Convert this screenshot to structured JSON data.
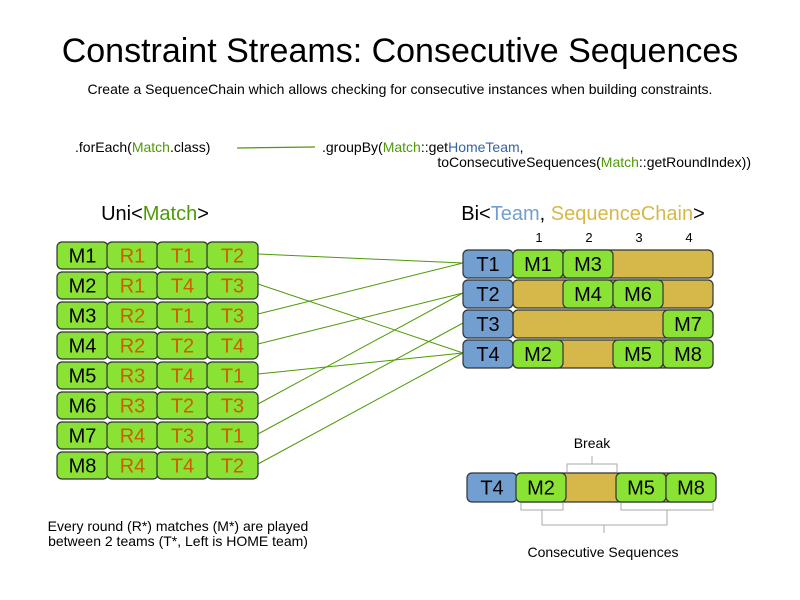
{
  "title": "Constraint Streams: Consecutive Sequences",
  "subtitle": "Create a SequenceChain which allows checking for consecutive instances when building constraints.",
  "code": {
    "forEach": [
      ".forEach(",
      "Match",
      ".class)"
    ],
    "groupBy_line1": [
      ".groupBy(",
      "Match",
      "::get",
      "HomeTeam",
      ","
    ],
    "groupBy_line2": [
      "toConsecutiveSequences(",
      "Match",
      "::getRoundIndex))"
    ]
  },
  "uni_label": [
    "Uni<",
    "Match",
    ">"
  ],
  "bi_label": [
    "Bi<",
    "Team",
    ", ",
    "SequenceChain",
    ">"
  ],
  "matches": [
    {
      "id": "M1",
      "round": "R1",
      "home": "T1",
      "away": "T2"
    },
    {
      "id": "M2",
      "round": "R1",
      "home": "T4",
      "away": "T3"
    },
    {
      "id": "M3",
      "round": "R2",
      "home": "T1",
      "away": "T3"
    },
    {
      "id": "M4",
      "round": "R2",
      "home": "T2",
      "away": "T4"
    },
    {
      "id": "M5",
      "round": "R3",
      "home": "T4",
      "away": "T1"
    },
    {
      "id": "M6",
      "round": "R3",
      "home": "T2",
      "away": "T3"
    },
    {
      "id": "M7",
      "round": "R4",
      "home": "T3",
      "away": "T1"
    },
    {
      "id": "M8",
      "round": "R4",
      "home": "T4",
      "away": "T2"
    }
  ],
  "round_headers": [
    "1",
    "2",
    "3",
    "4"
  ],
  "teams": [
    {
      "id": "T1",
      "rounds": [
        "M1",
        "M3",
        "",
        ""
      ]
    },
    {
      "id": "T2",
      "rounds": [
        "",
        "M4",
        "M6",
        ""
      ]
    },
    {
      "id": "T3",
      "rounds": [
        "",
        "",
        "",
        "M7"
      ]
    },
    {
      "id": "T4",
      "rounds": [
        "M2",
        "",
        "M5",
        "M8"
      ]
    }
  ],
  "example": {
    "team": "T4",
    "cells": [
      "M2",
      "",
      "M5",
      "M8"
    ],
    "break_label": "Break",
    "sequences_label": "Consecutive Sequences"
  },
  "footnote": [
    "Every round (R*) matches (M*) are played",
    "between 2 teams (T*, Left is HOME team)"
  ],
  "colors": {
    "green": "#8ae234",
    "green_text": "#4e9a06",
    "orange_text": "#ce5c00",
    "blue": "#729fcf",
    "blue_text": "#3465a4",
    "gold": "#d6b84a",
    "line": "#4e9a06"
  }
}
